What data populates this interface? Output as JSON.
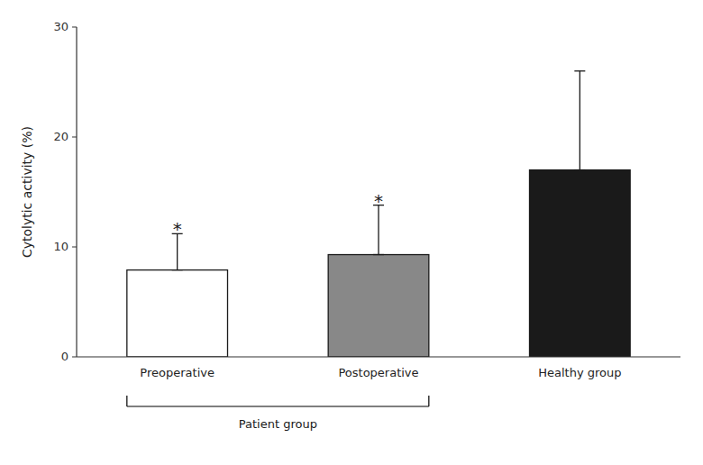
{
  "chart_data": {
    "type": "bar",
    "categories": [
      "Preoperative",
      "Postoperative",
      "Healthy group"
    ],
    "values": [
      7.9,
      9.3,
      17.0
    ],
    "errors_upper": [
      3.3,
      4.5,
      9.0
    ],
    "errors_lower": [
      0.0,
      0.0,
      0.0
    ],
    "colors": [
      "#ffffff",
      "#888888",
      "#1a1a1a"
    ],
    "ylabel": "Cytolytic activity (%)",
    "ylim": [
      0,
      30
    ],
    "yticks": [
      0,
      10,
      20,
      30
    ],
    "grid": false,
    "annotations": [
      {
        "text": "*",
        "categories": [
          "Preoperative"
        ]
      },
      {
        "text": "*",
        "categories": [
          "Postoperative"
        ]
      },
      {
        "text": "Patient group",
        "categories": [
          "Preoperative",
          "Postoperative"
        ]
      }
    ]
  }
}
